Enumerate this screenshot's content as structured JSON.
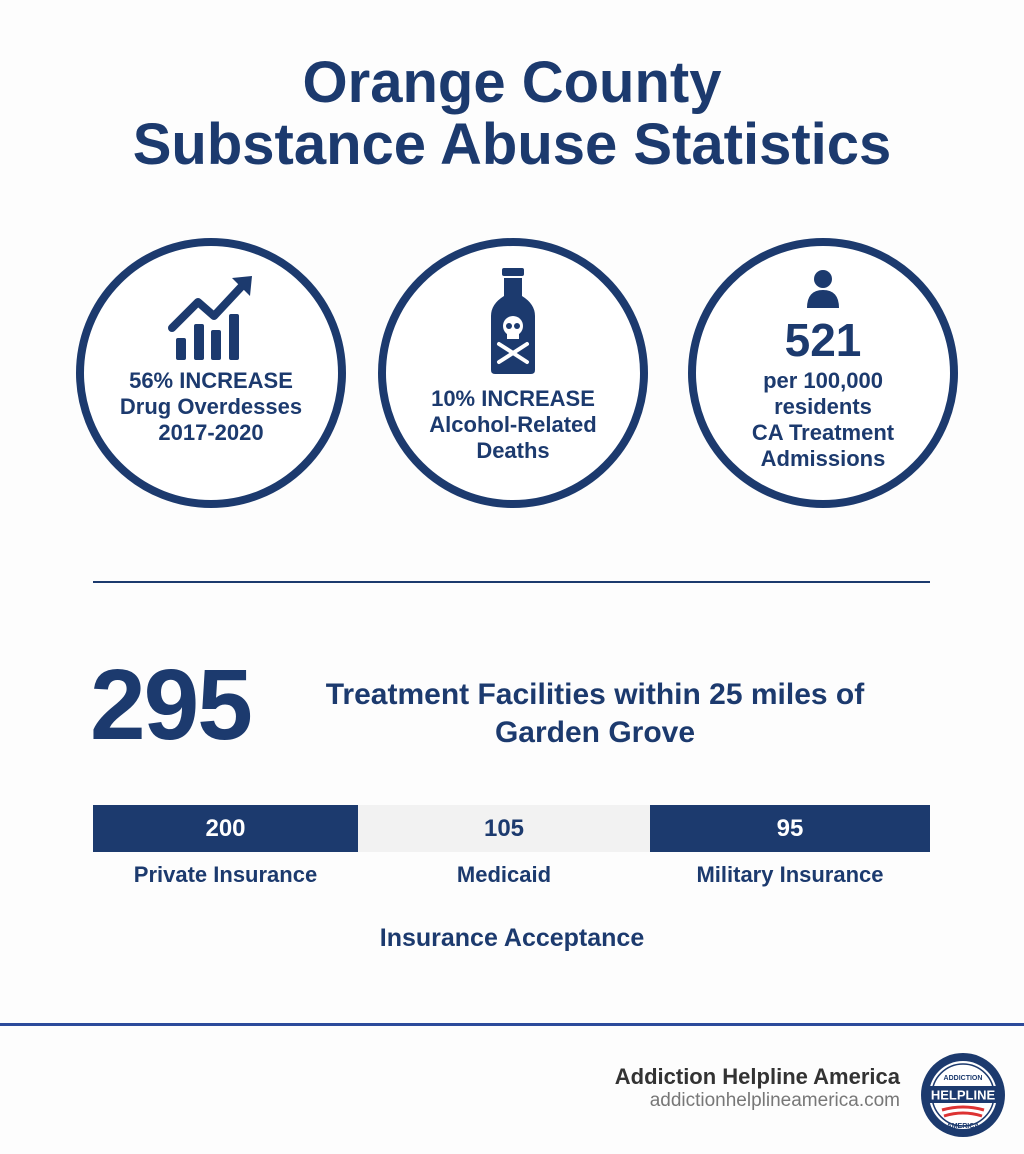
{
  "title": {
    "line1": "Orange County",
    "line2": "Substance Abuse Statistics"
  },
  "stats": [
    {
      "icon": "chart-increase-icon",
      "lines": [
        "56% INCREASE",
        "Drug Overdesses",
        "2017-2020"
      ]
    },
    {
      "icon": "poison-bottle-icon",
      "lines": [
        "10% INCREASE",
        "Alcohol-Related",
        "Deaths"
      ]
    },
    {
      "icon": "person-icon",
      "number": "521",
      "lines": [
        "per 100,000",
        "residents",
        "CA Treatment",
        "Admissions"
      ]
    }
  ],
  "facilities": {
    "count": "295",
    "line1": "Treatment Facilities within 25 miles of",
    "line2": "Garden Grove"
  },
  "insurance": {
    "title": "Insurance Acceptance",
    "segments": [
      {
        "value": "200",
        "label": "Private Insurance"
      },
      {
        "value": "105",
        "label": "Medicaid"
      },
      {
        "value": "95",
        "label": "Military Insurance"
      }
    ]
  },
  "footer": {
    "name": "Addiction Helpline America",
    "url": "addictionhelplineamerica.com",
    "logo_text": [
      "ADDICTION",
      "HELPLINE",
      "AMERICA"
    ]
  },
  "colors": {
    "primary": "#1c3a6e",
    "light_segment": "#f2f2f2",
    "footer_rule": "#2b4a9b"
  }
}
